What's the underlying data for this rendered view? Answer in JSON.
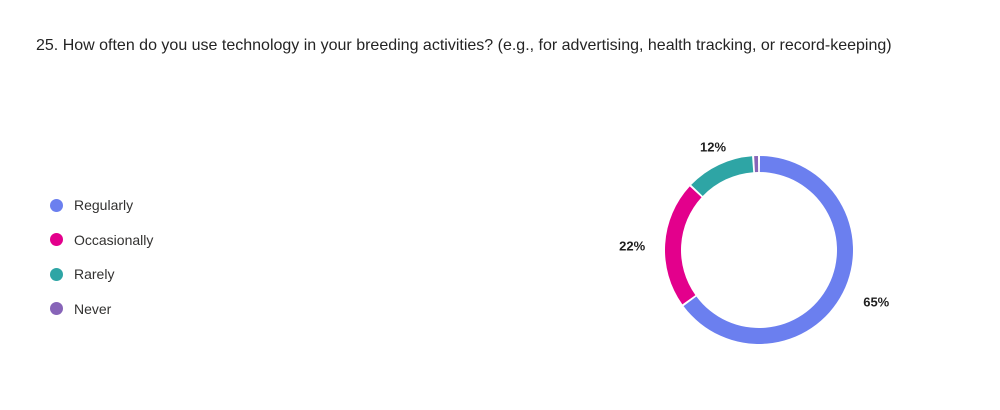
{
  "question": {
    "title": "25. How often do you use technology in your breeding activities? (e.g., for advertising, health tracking, or record-keeping)"
  },
  "chart_data": {
    "type": "pie",
    "variant": "donut",
    "categories": [
      "Regularly",
      "Occasionally",
      "Rarely",
      "Never"
    ],
    "values": [
      65,
      22,
      12,
      1
    ],
    "colors": [
      "#6b7fef",
      "#e3008c",
      "#2ea5a5",
      "#8764b8"
    ],
    "slice_labels": [
      "65%",
      "22%",
      "12%",
      ""
    ],
    "legend_position": "left"
  }
}
